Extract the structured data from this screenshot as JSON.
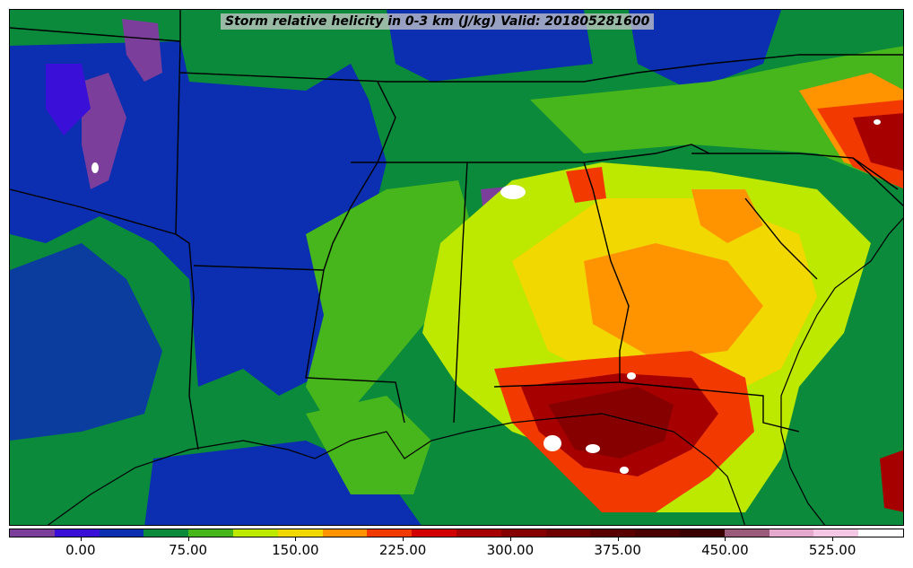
{
  "map": {
    "title": "Storm relative helicity in 0-3 km (J/kg) Valid: 201805281600",
    "variable": "Storm relative helicity in 0-3 km",
    "units": "J/kg",
    "valid_time": "201805281600"
  },
  "colorbar": {
    "colors": [
      "#7b3f9b",
      "#3a0fd8",
      "#0b2fb0",
      "#0a8a3a",
      "#47b51c",
      "#bde800",
      "#f0d800",
      "#ff9400",
      "#f23a00",
      "#d30000",
      "#a60000",
      "#870000",
      "#6e0000",
      "#5a0000",
      "#4a0000",
      "#3a0000",
      "#9a5a7a",
      "#e4a9cc",
      "#f4c8e4",
      "#ffffff"
    ],
    "tick_labels": [
      "0.00",
      "75.00",
      "150.00",
      "225.00",
      "300.00",
      "375.00",
      "450.00",
      "525.00"
    ],
    "tick_values": [
      0,
      75,
      150,
      225,
      300,
      375,
      450,
      525
    ],
    "range": [
      -50,
      575
    ]
  }
}
